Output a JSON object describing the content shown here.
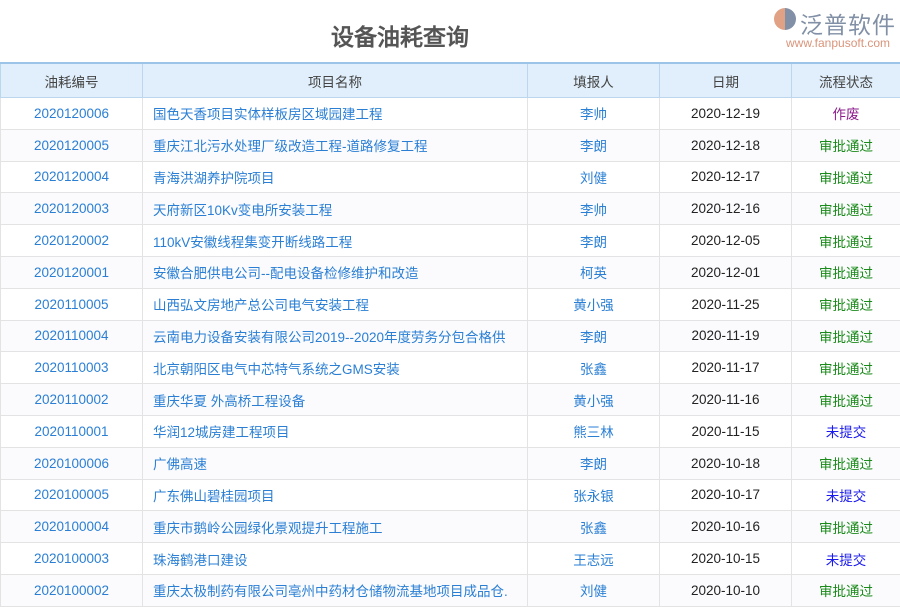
{
  "title": "设备油耗查询",
  "columns": [
    "油耗编号",
    "项目名称",
    "填报人",
    "日期",
    "流程状态"
  ],
  "status_colors": {
    "作废": "#8b1a8b",
    "审批通过": "#1a8a1a",
    "未提交": "#1a1aee"
  },
  "rows": [
    {
      "code": "2020120006",
      "name": "国色天香项目实体样板房区域园建工程",
      "person": "李帅",
      "date": "2020-12-19",
      "status": "作废"
    },
    {
      "code": "2020120005",
      "name": "重庆江北污水处理厂级改造工程-道路修复工程",
      "person": "李朗",
      "date": "2020-12-18",
      "status": "审批通过"
    },
    {
      "code": "2020120004",
      "name": "青海洪湖养护院项目",
      "person": "刘健",
      "date": "2020-12-17",
      "status": "审批通过"
    },
    {
      "code": "2020120003",
      "name": "天府新区10Kv变电所安装工程",
      "person": "李帅",
      "date": "2020-12-16",
      "status": "审批通过"
    },
    {
      "code": "2020120002",
      "name": "110kV安徽线程集变开断线路工程",
      "person": "李朗",
      "date": "2020-12-05",
      "status": "审批通过"
    },
    {
      "code": "2020120001",
      "name": "安徽合肥供电公司--配电设备检修维护和改造",
      "person": "柯英",
      "date": "2020-12-01",
      "status": "审批通过"
    },
    {
      "code": "2020110005",
      "name": "山西弘文房地产总公司电气安装工程",
      "person": "黄小强",
      "date": "2020-11-25",
      "status": "审批通过"
    },
    {
      "code": "2020110004",
      "name": "云南电力设备安装有限公司2019--2020年度劳务分包合格供",
      "person": "李朗",
      "date": "2020-11-19",
      "status": "审批通过"
    },
    {
      "code": "2020110003",
      "name": "北京朝阳区电气中芯特气系统之GMS安装",
      "person": "张鑫",
      "date": "2020-11-17",
      "status": "审批通过"
    },
    {
      "code": "2020110002",
      "name": "重庆华夏 外高桥工程设备",
      "person": "黄小强",
      "date": "2020-11-16",
      "status": "审批通过"
    },
    {
      "code": "2020110001",
      "name": "华润12城房建工程项目",
      "person": "熊三林",
      "date": "2020-11-15",
      "status": "未提交"
    },
    {
      "code": "2020100006",
      "name": "广佛高速",
      "person": "李朗",
      "date": "2020-10-18",
      "status": "审批通过"
    },
    {
      "code": "2020100005",
      "name": "广东佛山碧桂园项目",
      "person": "张永银",
      "date": "2020-10-17",
      "status": "未提交"
    },
    {
      "code": "2020100004",
      "name": "重庆市鹅岭公园绿化景观提升工程施工",
      "person": "张鑫",
      "date": "2020-10-16",
      "status": "审批通过"
    },
    {
      "code": "2020100003",
      "name": "珠海鹤港口建设",
      "person": "王志远",
      "date": "2020-10-15",
      "status": "未提交"
    },
    {
      "code": "2020100002",
      "name": "重庆太极制药有限公司亳州中药材仓储物流基地项目成品仓.",
      "person": "刘健",
      "date": "2020-10-10",
      "status": "审批通过"
    }
  ],
  "watermark": {
    "text": "泛普软件",
    "url": "www.fanpusoft.com"
  }
}
